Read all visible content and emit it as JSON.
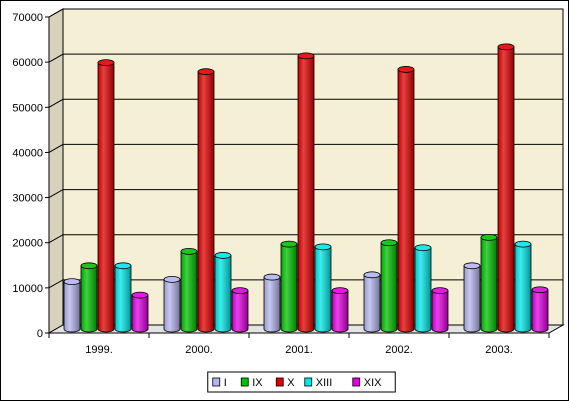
{
  "chart_data": {
    "type": "bar",
    "style": "3d-cylinder",
    "categories": [
      "1999.",
      "2000.",
      "2001.",
      "2002.",
      "2003."
    ],
    "series": [
      {
        "name": "I",
        "color": "#b4b4ee",
        "values": [
          10500,
          11000,
          11500,
          12000,
          14000
        ]
      },
      {
        "name": "IX",
        "color": "#00c000",
        "values": [
          14000,
          17200,
          18800,
          19100,
          20300
        ]
      },
      {
        "name": "X",
        "color": "#e00000",
        "values": [
          59000,
          57000,
          60500,
          57500,
          62500
        ]
      },
      {
        "name": "XIII",
        "color": "#00e6e6",
        "values": [
          14000,
          16300,
          18200,
          18000,
          18800
        ]
      },
      {
        "name": "XIX",
        "color": "#e000e0",
        "values": [
          7500,
          8500,
          8500,
          8500,
          8700
        ]
      }
    ],
    "ylim": [
      0,
      70000
    ],
    "yticks": [
      0,
      10000,
      20000,
      30000,
      40000,
      50000,
      60000,
      70000
    ],
    "grid": true,
    "legend_position": "bottom",
    "wall_color": "#f5efd6",
    "floor_color": "#e4e4e4"
  }
}
